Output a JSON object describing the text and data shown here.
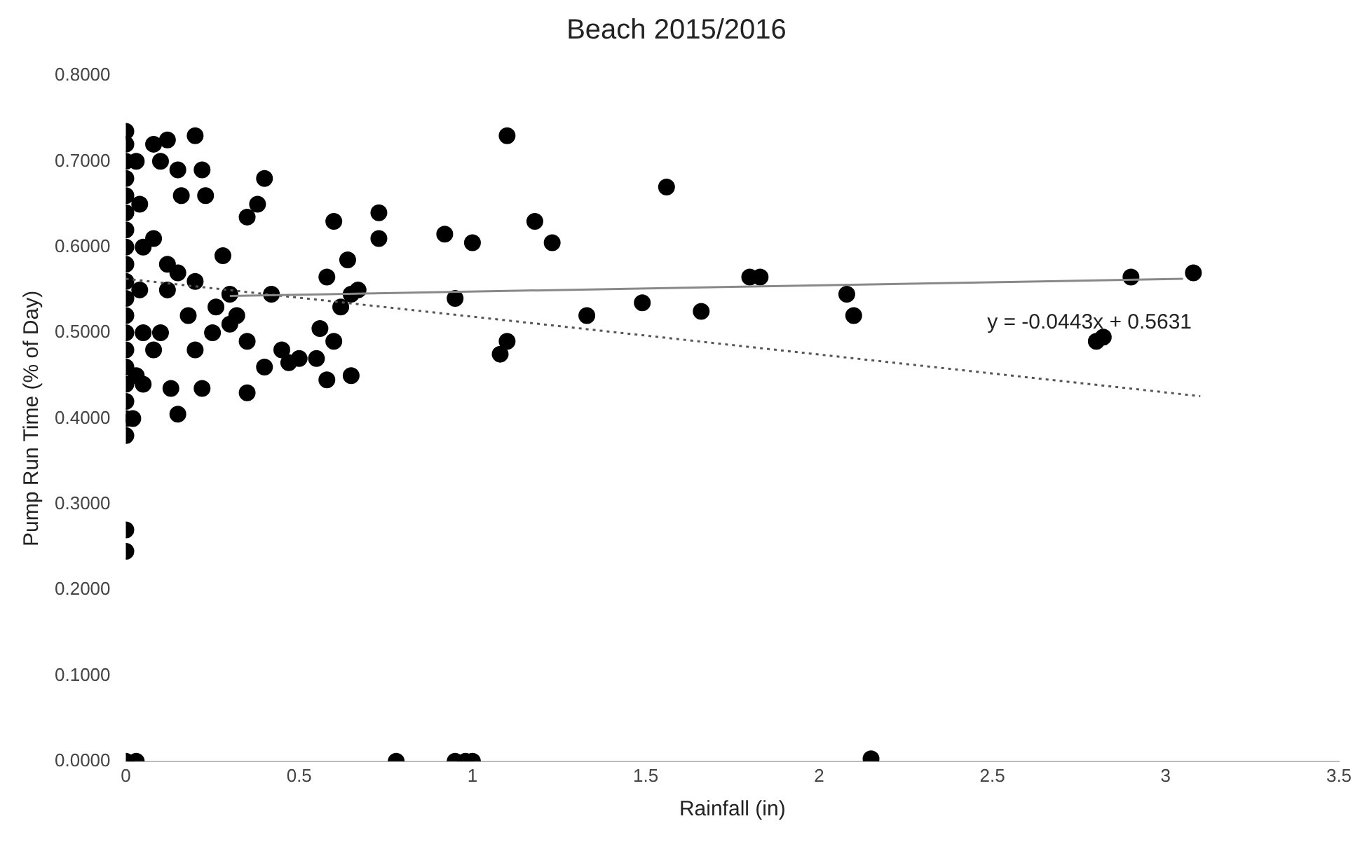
{
  "chart_data": {
    "type": "scatter",
    "title": "Beach 2015/2016",
    "xlabel": "Rainfall (in)",
    "ylabel": "Pump Run Time (% of Day)",
    "xlim": [
      0,
      3.5
    ],
    "xticks": [
      0,
      0.5,
      1,
      1.5,
      2,
      2.5,
      3,
      3.5
    ],
    "ylim": [
      0,
      0.8
    ],
    "yticks": [
      {
        "value": 0,
        "label": "0.0000"
      },
      {
        "value": 0.1,
        "label": "0.1000"
      },
      {
        "value": 0.2,
        "label": "0.2000"
      },
      {
        "value": 0.3,
        "label": "0.3000"
      },
      {
        "value": 0.4,
        "label": "0.4000"
      },
      {
        "value": 0.5,
        "label": "0.5000"
      },
      {
        "value": 0.6,
        "label": "0.6000"
      },
      {
        "value": 0.7,
        "label": "0.7000"
      },
      {
        "value": 0.8,
        "label": "0.8000"
      }
    ],
    "grid": false,
    "legend": false,
    "marker": "circle",
    "series": [
      {
        "color": "#000000",
        "x": [
          0,
          0,
          0,
          0,
          0,
          0,
          0,
          0,
          0,
          0,
          0,
          0,
          0,
          0,
          0,
          0,
          0,
          0,
          0,
          0,
          0,
          0.03,
          0.04,
          0.05,
          0.04,
          0.05,
          0.03,
          0.02,
          0,
          0.03,
          0.78,
          0.95,
          0.98,
          1.0,
          2.15,
          0.08,
          0.12,
          0.2,
          0.1,
          0.15,
          0.22,
          0.16,
          0.23,
          0.4,
          0.38,
          0.35,
          0.6,
          0.73,
          0.73,
          0.64,
          0.92,
          1.0,
          1.1,
          1.18,
          1.23,
          1.56,
          0.58,
          0.28,
          0.12,
          0.08,
          0.15,
          0.2,
          0.3,
          0.42,
          0.95,
          1.33,
          1.49,
          1.66,
          1.8,
          1.83,
          2.08,
          2.1,
          2.8,
          2.82,
          2.9,
          3.08,
          1.08,
          1.1,
          0.62,
          0.65,
          0.67,
          0.56,
          0.6,
          0.45,
          0.5,
          0.4,
          0.47,
          0.55,
          0.58,
          0.65,
          0.35,
          0.22,
          0.13,
          0.15,
          0.05,
          0.1,
          0.18,
          0.25,
          0.3,
          0.35,
          0.08,
          0.12,
          0.2,
          0.26,
          0.32
        ],
        "values": [
          0.38,
          0.4,
          0.42,
          0.44,
          0.46,
          0.48,
          0.5,
          0.52,
          0.54,
          0.56,
          0.58,
          0.6,
          0.62,
          0.64,
          0.66,
          0.68,
          0.7,
          0.72,
          0.735,
          0.27,
          0.245,
          0.7,
          0.65,
          0.6,
          0.55,
          0.5,
          0.45,
          0.4,
          0,
          0,
          0,
          0,
          0,
          0,
          0.003,
          0.72,
          0.725,
          0.73,
          0.7,
          0.69,
          0.69,
          0.66,
          0.66,
          0.68,
          0.65,
          0.635,
          0.63,
          0.64,
          0.61,
          0.585,
          0.615,
          0.605,
          0.73,
          0.63,
          0.605,
          0.67,
          0.565,
          0.59,
          0.58,
          0.61,
          0.57,
          0.56,
          0.545,
          0.545,
          0.54,
          0.52,
          0.535,
          0.525,
          0.565,
          0.565,
          0.545,
          0.52,
          0.49,
          0.495,
          0.565,
          0.57,
          0.475,
          0.49,
          0.53,
          0.545,
          0.55,
          0.505,
          0.49,
          0.48,
          0.47,
          0.46,
          0.465,
          0.47,
          0.445,
          0.45,
          0.43,
          0.435,
          0.435,
          0.405,
          0.44,
          0.5,
          0.52,
          0.5,
          0.51,
          0.49,
          0.48,
          0.55,
          0.48,
          0.53,
          0.52
        ]
      },
      {
        "type": "line",
        "marker": "none",
        "color": "#888888",
        "line_style": "solid",
        "x": [
          0.3,
          3.05
        ],
        "values": [
          0.543,
          0.563
        ]
      },
      {
        "type": "line",
        "marker": "none",
        "color": "#555555",
        "line_style": "dotted",
        "x": [
          0,
          3.1
        ],
        "values": [
          0.563,
          0.426
        ]
      }
    ],
    "annotations": [
      "y = -0.0443x + 0.5631"
    ]
  }
}
